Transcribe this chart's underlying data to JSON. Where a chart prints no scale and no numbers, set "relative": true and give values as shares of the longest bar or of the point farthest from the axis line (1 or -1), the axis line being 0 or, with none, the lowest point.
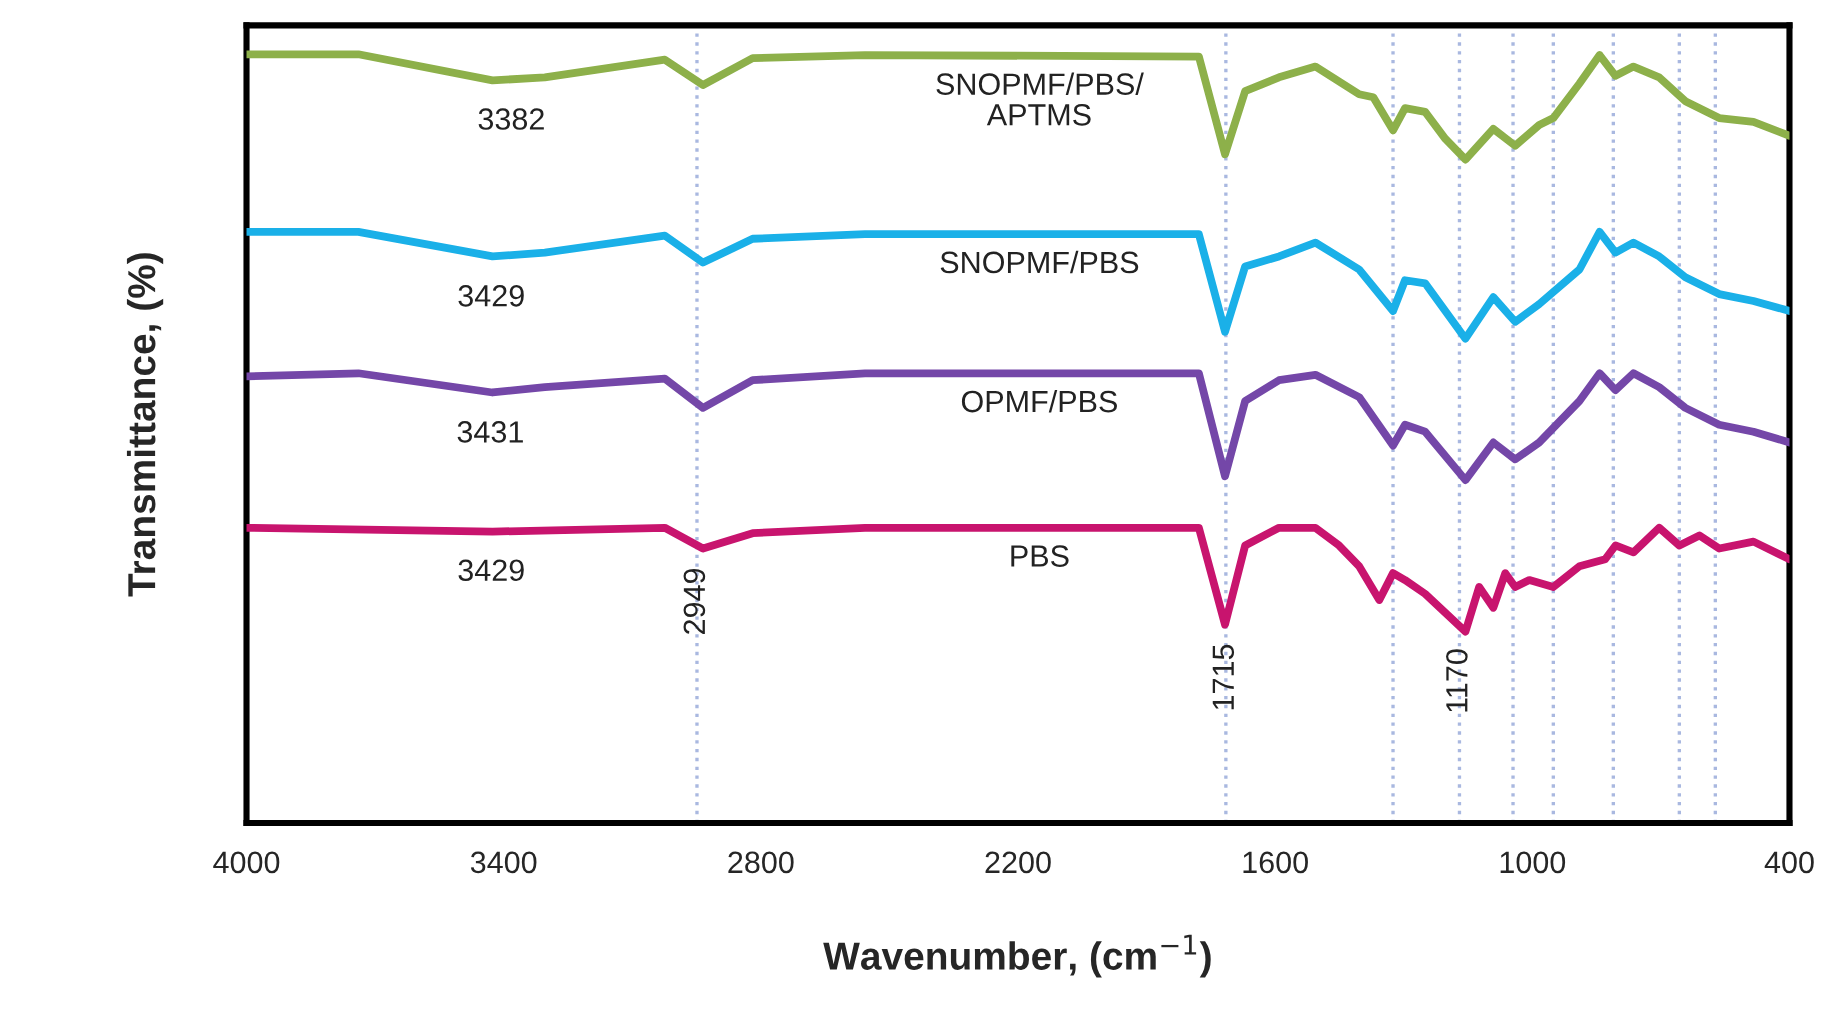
{
  "chart_data": {
    "type": "line",
    "relative": true,
    "xlabel": "Wavenumber, (cm$^{−1}$)",
    "ylabel": "Transmittance, (%)",
    "xlim": [
      4000,
      400
    ],
    "xticks": [
      4000,
      3400,
      2800,
      2200,
      1600,
      1000,
      400
    ],
    "grid": false,
    "legend": false,
    "tick_labels": "x",
    "marker": "none",
    "line_style": "solid",
    "series": [
      {
        "name": "SNOPMF/PBS/\nAPTMS",
        "color": "#8db04a",
        "x": [
          4000,
          3739,
          3426,
          3304,
          3024,
          2935,
          2819,
          2557,
          1778,
          1717,
          1670,
          1591,
          1506,
          1404,
          1371,
          1325,
          1297,
          1250,
          1203,
          1156,
          1091,
          1040,
          984,
          951,
          890,
          843,
          806,
          764,
          704,
          643,
          564,
          484,
          400
        ],
        "values": [
          1.0,
          1.0,
          0.966,
          0.97,
          0.993,
          0.96,
          0.995,
          0.999,
          0.997,
          0.87,
          0.952,
          0.97,
          0.984,
          0.948,
          0.944,
          0.901,
          0.93,
          0.925,
          0.89,
          0.863,
          0.903,
          0.881,
          0.908,
          0.917,
          0.962,
          0.999,
          0.972,
          0.984,
          0.97,
          0.939,
          0.917,
          0.912,
          0.894
        ]
      },
      {
        "name": "SNOPMF/PBS",
        "color": "#1ab0e8",
        "x": [
          4000,
          3739,
          3426,
          3304,
          3024,
          2935,
          2819,
          2557,
          1778,
          1717,
          1670,
          1591,
          1506,
          1404,
          1325,
          1297,
          1250,
          1156,
          1091,
          1040,
          984,
          890,
          843,
          806,
          764,
          704,
          643,
          564,
          484,
          400
        ],
        "values": [
          0.769,
          0.769,
          0.737,
          0.742,
          0.764,
          0.729,
          0.76,
          0.766,
          0.766,
          0.639,
          0.724,
          0.737,
          0.755,
          0.72,
          0.666,
          0.706,
          0.702,
          0.63,
          0.684,
          0.652,
          0.675,
          0.72,
          0.769,
          0.742,
          0.755,
          0.737,
          0.71,
          0.688,
          0.679,
          0.666
        ]
      },
      {
        "name": "OPMF/PBS",
        "color": "#7447a8",
        "x": [
          4000,
          3739,
          3426,
          3304,
          3024,
          2935,
          2819,
          2557,
          1778,
          1717,
          1670,
          1591,
          1506,
          1404,
          1325,
          1297,
          1250,
          1156,
          1091,
          1040,
          984,
          890,
          843,
          806,
          764,
          704,
          643,
          564,
          484,
          400
        ],
        "values": [
          0.581,
          0.585,
          0.56,
          0.567,
          0.578,
          0.54,
          0.576,
          0.585,
          0.585,
          0.451,
          0.549,
          0.576,
          0.583,
          0.554,
          0.491,
          0.518,
          0.509,
          0.446,
          0.495,
          0.473,
          0.495,
          0.549,
          0.585,
          0.563,
          0.585,
          0.567,
          0.54,
          0.518,
          0.509,
          0.495
        ]
      },
      {
        "name": "PBS",
        "color": "#c8146e",
        "x": [
          4000,
          3426,
          3024,
          2935,
          2819,
          2557,
          1778,
          1717,
          1670,
          1591,
          1506,
          1451,
          1404,
          1357,
          1325,
          1297,
          1250,
          1156,
          1124,
          1091,
          1063,
          1040,
          1007,
          951,
          890,
          830,
          806,
          764,
          704,
          657,
          610,
          564,
          484,
          400
        ],
        "values": [
          0.384,
          0.379,
          0.384,
          0.357,
          0.377,
          0.384,
          0.384,
          0.258,
          0.361,
          0.384,
          0.384,
          0.361,
          0.334,
          0.29,
          0.325,
          0.316,
          0.298,
          0.249,
          0.307,
          0.28,
          0.325,
          0.307,
          0.316,
          0.307,
          0.334,
          0.343,
          0.361,
          0.352,
          0.384,
          0.361,
          0.374,
          0.357,
          0.366,
          0.343
        ]
      }
    ],
    "ref_lines": [
      {
        "axis": "x",
        "value": 2949,
        "label": "2949",
        "color": "#a9b8e0",
        "line_style": "dotted"
      },
      {
        "axis": "x",
        "value": 1715,
        "label": "1715",
        "color": "#a9b8e0",
        "line_style": "dotted"
      },
      {
        "axis": "x",
        "value": 1325,
        "color": "#a9b8e0",
        "line_style": "dotted"
      },
      {
        "axis": "x",
        "value": 1170,
        "label": "1170",
        "color": "#a9b8e0",
        "line_style": "dotted"
      },
      {
        "axis": "x",
        "value": 1045,
        "color": "#a9b8e0",
        "line_style": "dotted"
      },
      {
        "axis": "x",
        "value": 951,
        "color": "#a9b8e0",
        "line_style": "dotted"
      },
      {
        "axis": "x",
        "value": 811,
        "color": "#a9b8e0",
        "line_style": "dotted"
      },
      {
        "axis": "x",
        "value": 657,
        "color": "#a9b8e0",
        "line_style": "dotted"
      },
      {
        "axis": "x",
        "value": 573,
        "color": "#a9b8e0",
        "line_style": "dotted"
      }
    ],
    "annotations": [
      {
        "text": "3382",
        "x": 3382,
        "y": 0.967
      },
      {
        "text": "3429",
        "x": 3429,
        "y": 0.737
      },
      {
        "text": "3431",
        "x": 3431,
        "y": 0.56
      },
      {
        "text": "3429",
        "x": 3429,
        "y": 0.38
      }
    ]
  }
}
